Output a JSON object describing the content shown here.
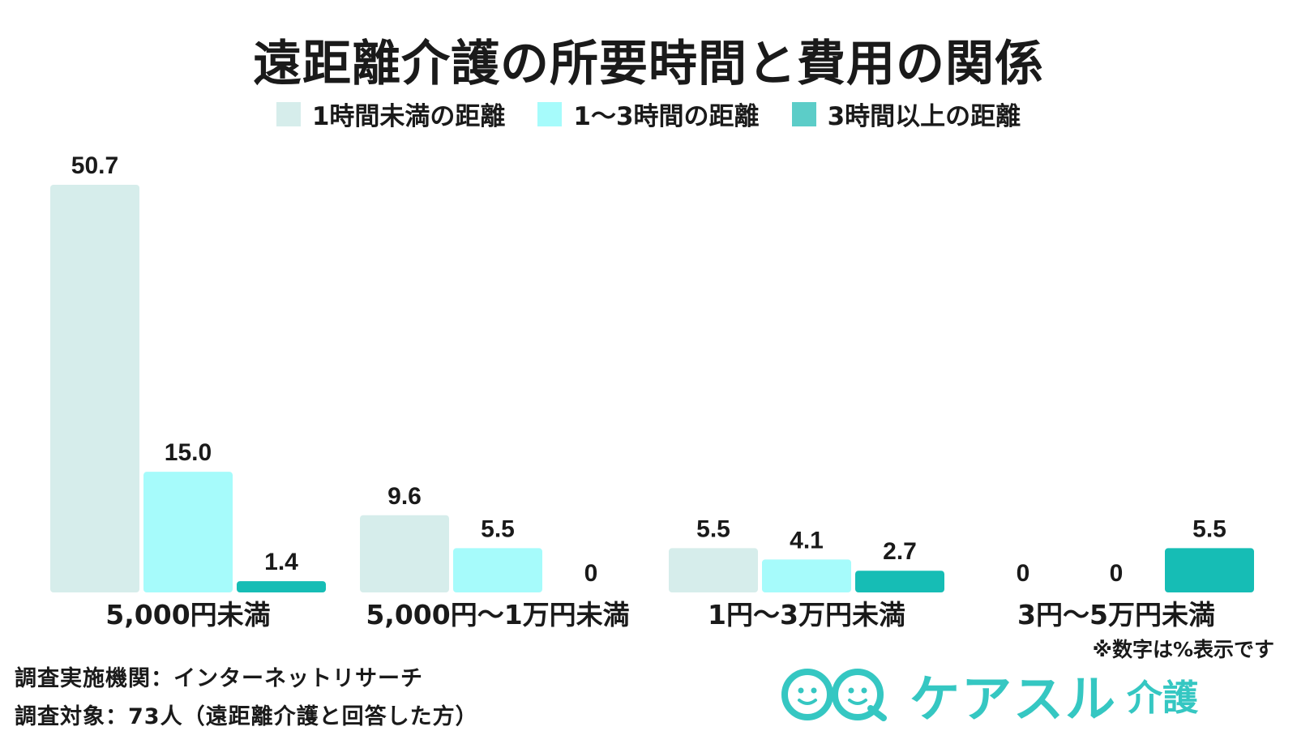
{
  "chart_data": {
    "type": "bar",
    "title": "遠距離介護の所要時間と費用の関係",
    "categories": [
      "5,000円未満",
      "5,000円～1万円未満",
      "1円～3万円未満",
      "3円～5万円未満"
    ],
    "series": [
      {
        "name": "1時間未満の距離",
        "values": [
          50.7,
          9.6,
          5.5,
          0
        ],
        "labels": [
          "50.7",
          "9.6",
          "5.5",
          "0"
        ],
        "color": "#d6edeb"
      },
      {
        "name": "1～3時間の距離",
        "values": [
          15.0,
          5.5,
          4.1,
          0
        ],
        "labels": [
          "15.0",
          "5.5",
          "4.1",
          "0"
        ],
        "color": "#a6fbfb"
      },
      {
        "name": "3時間以上の距離",
        "values": [
          1.4,
          0,
          2.7,
          5.5
        ],
        "labels": [
          "1.4",
          "0",
          "2.7",
          "5.5"
        ],
        "color": "#16bdb5"
      }
    ],
    "ylim": [
      0,
      50.7
    ],
    "grid": false,
    "legend": "top-center",
    "xlabel": "",
    "ylabel": ""
  },
  "note": "※数字は%表示です",
  "footer": {
    "method": "調査実施機関：インターネットリサーチ",
    "target": "調査対象：73人（遠距離介護と回答した方）"
  },
  "logo": {
    "text": "ケアスル",
    "sub": "介護",
    "icon": "smiley-face-icon",
    "color": "#35c7c2"
  }
}
